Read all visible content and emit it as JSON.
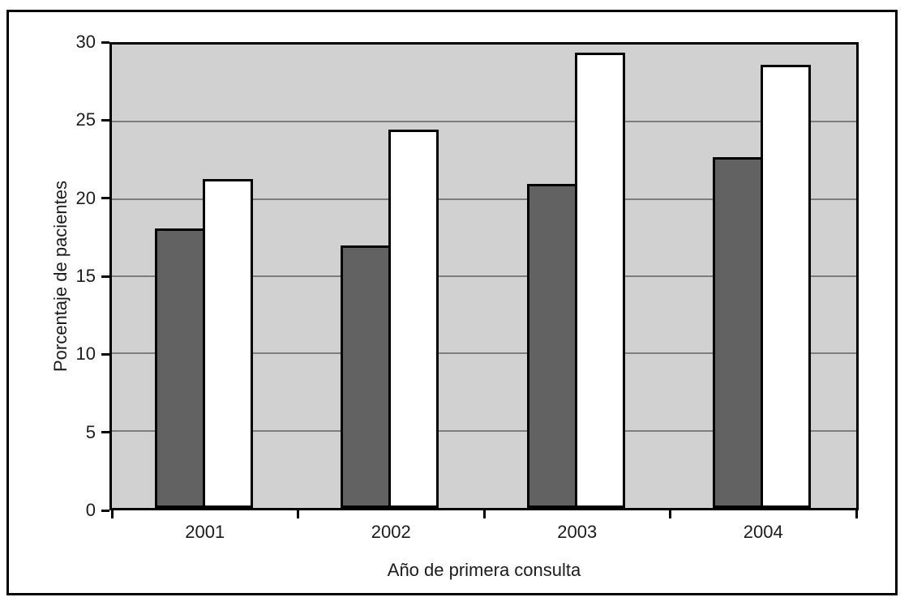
{
  "chart_data": {
    "type": "bar",
    "title": "",
    "categories": [
      "2001",
      "2002",
      "2003",
      "2004"
    ],
    "series": [
      {
        "name": "dark-gray",
        "color": "#626262",
        "values": [
          18.1,
          17.0,
          21.0,
          22.7
        ]
      },
      {
        "name": "white",
        "color": "#ffffff",
        "values": [
          21.3,
          24.5,
          29.5,
          28.7
        ]
      }
    ],
    "xlabel": "Año de primera consulta",
    "ylabel": "Porcentaje de pacientes",
    "ylim": [
      0,
      30
    ],
    "yticks": [
      "0",
      "5",
      "10",
      "15",
      "20",
      "25",
      "30"
    ],
    "grid": true,
    "legend": "none",
    "plot_bg": "#d1d1d1",
    "gridline_color": "#7d7d7d",
    "bar_border_color": "#000000",
    "frame_border_color": "#000000"
  }
}
